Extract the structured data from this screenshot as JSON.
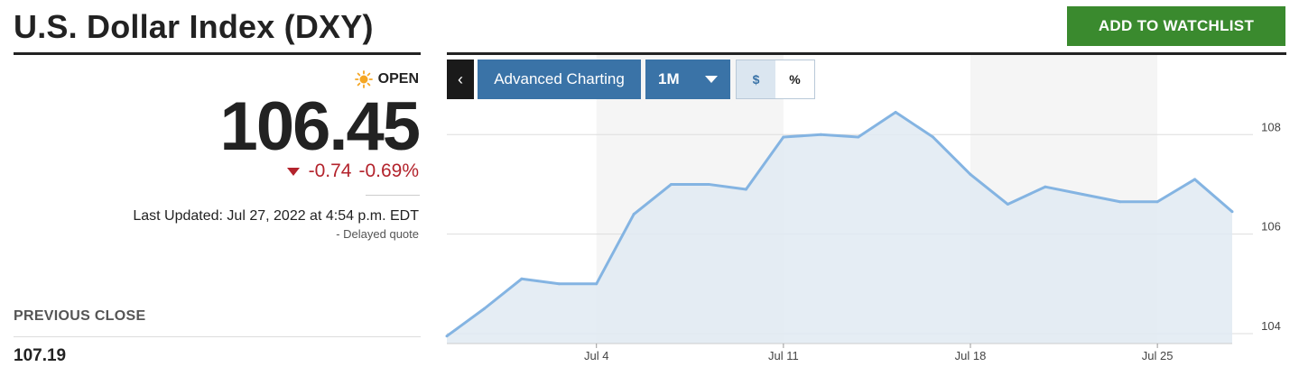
{
  "header": {
    "title": "U.S. Dollar Index (DXY)",
    "watchlist_label": "ADD TO WATCHLIST"
  },
  "quote": {
    "status": "OPEN",
    "status_icon": "sun-icon",
    "price": "106.45",
    "change": "-0.74",
    "change_pct": "-0.69%",
    "change_icon": "down-arrow-icon",
    "last_updated": "Last Updated: Jul 27, 2022 at 4:54 p.m. EDT",
    "delayed": "- Delayed quote",
    "previous_close_label": "PREVIOUS CLOSE",
    "previous_close_value": "107.19"
  },
  "toolbar": {
    "back_icon": "chevron-left-icon",
    "advanced_label": "Advanced Charting",
    "range_label": "1M",
    "currency_label": "$",
    "percent_label": "%"
  },
  "colors": {
    "watchlist_green": "#3a8a2e",
    "toolbar_blue": "#3a73a7",
    "negative_red": "#b3232c",
    "line_blue": "#84b4e2",
    "area_fill": "#e1eaf2"
  },
  "chart_data": {
    "type": "area",
    "x": [
      "Jun 27",
      "Jun 28",
      "Jun 29",
      "Jun 30",
      "Jul 1",
      "Jul 5",
      "Jul 6",
      "Jul 7",
      "Jul 8",
      "Jul 11",
      "Jul 12",
      "Jul 13",
      "Jul 14",
      "Jul 15",
      "Jul 18",
      "Jul 19",
      "Jul 20",
      "Jul 21",
      "Jul 22",
      "Jul 25",
      "Jul 26",
      "Jul 27"
    ],
    "series": [
      {
        "values": [
          103.95,
          104.5,
          105.1,
          105.0,
          105.0,
          106.4,
          107.0,
          107.0,
          106.9,
          107.95,
          108.0,
          107.95,
          108.45,
          107.95,
          107.2,
          106.6,
          106.95,
          106.8,
          106.65,
          106.65,
          107.1,
          106.45
        ]
      }
    ],
    "xticks": [
      {
        "label": "Jul 4",
        "index": 4
      },
      {
        "label": "Jul 11",
        "index": 9
      },
      {
        "label": "Jul 18",
        "index": 14
      },
      {
        "label": "Jul 25",
        "index": 19
      }
    ],
    "yticks": [
      104,
      106,
      108
    ],
    "ylim": [
      103.8,
      109.6
    ],
    "week_shading": true,
    "grid": true
  }
}
